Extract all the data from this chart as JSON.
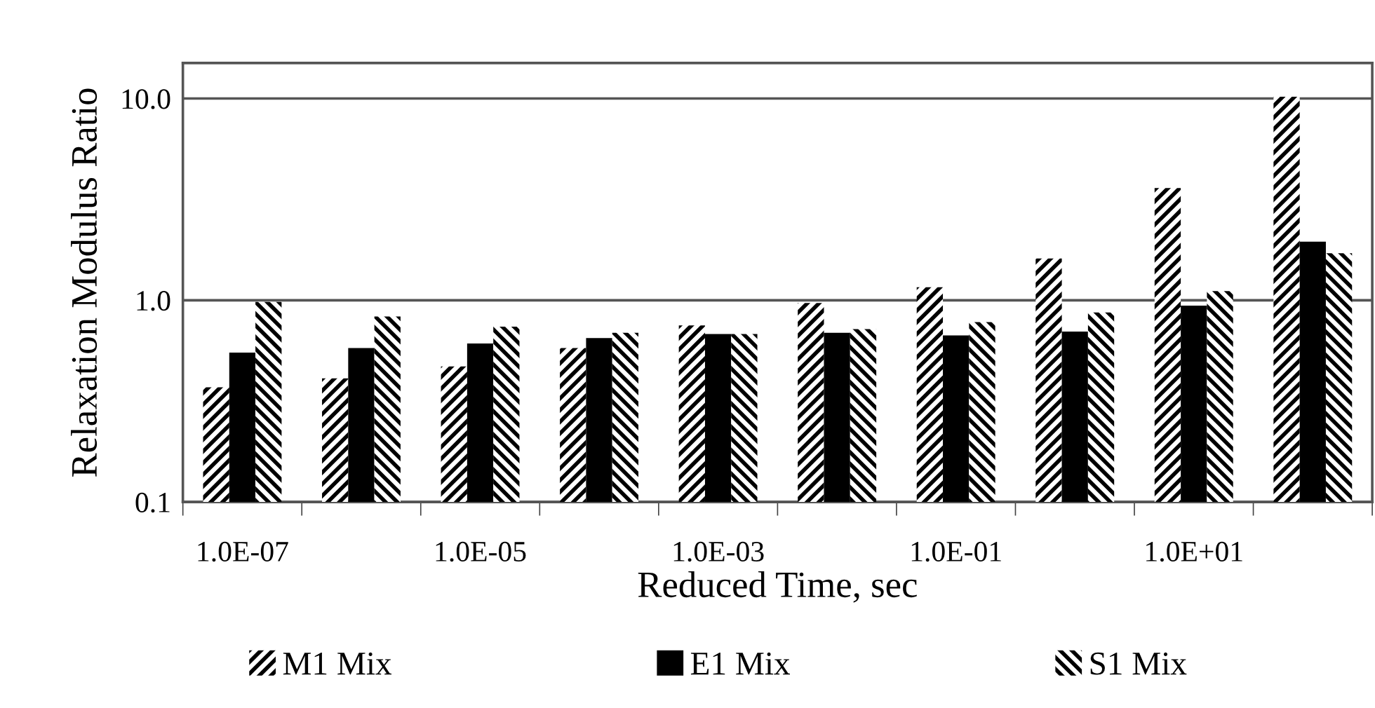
{
  "chart_data": {
    "type": "bar",
    "xlabel": "Reduced Time, sec",
    "ylabel": "Relaxation Modulus Ratio",
    "categories": [
      "1.0E-07",
      null,
      "1.0E-05",
      null,
      "1.0E-03",
      null,
      "1.0E-01",
      null,
      "1.0E+01",
      null
    ],
    "series": [
      {
        "name": "M1 Mix",
        "values": [
          0.37,
          0.41,
          0.47,
          0.58,
          0.75,
          0.97,
          1.16,
          1.61,
          3.6,
          10.2
        ]
      },
      {
        "name": "E1 Mix",
        "color": "#000000",
        "values": [
          0.55,
          0.58,
          0.61,
          0.65,
          0.68,
          0.69,
          0.67,
          0.7,
          0.94,
          1.95
        ]
      },
      {
        "name": "S1 Mix",
        "values": [
          0.98,
          0.83,
          0.74,
          0.69,
          0.68,
          0.72,
          0.78,
          0.87,
          1.11,
          1.71
        ]
      }
    ],
    "log": "y",
    "ylim": [
      0.1,
      15
    ],
    "yticks": [
      {
        "value": 0.1,
        "label": "0.1"
      },
      {
        "value": 1,
        "label": "1.0"
      },
      {
        "value": 10,
        "label": "10.0"
      }
    ],
    "grid": "y",
    "legend": "bottom"
  }
}
